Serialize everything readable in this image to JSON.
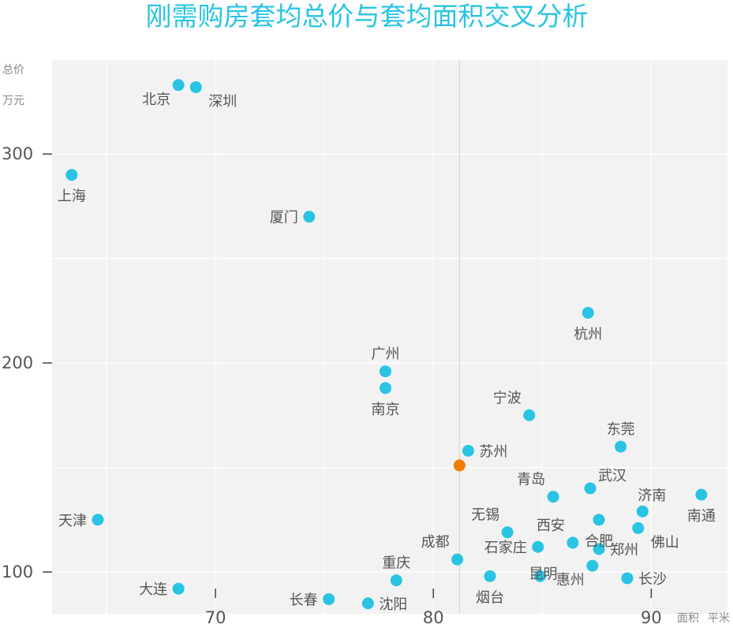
{
  "chart_data": {
    "type": "scatter",
    "title": "刚需购房套均总价与套均面积交叉分析",
    "ylabel_lines": [
      "总价",
      "万元"
    ],
    "xlabel_lines": [
      "面积",
      "平米"
    ],
    "xlim": [
      62.5,
      93.5
    ],
    "ylim": [
      80,
      345
    ],
    "xticks": [
      70,
      80,
      90
    ],
    "yticks": [
      100,
      200,
      300
    ],
    "grid": true,
    "colors": {
      "point": "#29c4e3",
      "highlight": "#f07c00",
      "plot_bg": "#f2f2f2",
      "refline": "#e8c8b8",
      "title": "#29c4e3"
    },
    "reference_x": 81.2,
    "highlight_point": {
      "x": 81.2,
      "y": 151
    },
    "points": [
      {
        "name": "北京",
        "x": 68.3,
        "y": 333
      },
      {
        "name": "深圳",
        "x": 69.1,
        "y": 332
      },
      {
        "name": "上海",
        "x": 63.4,
        "y": 290
      },
      {
        "name": "厦门",
        "x": 74.3,
        "y": 270
      },
      {
        "name": "杭州",
        "x": 87.1,
        "y": 224
      },
      {
        "name": "广州",
        "x": 77.8,
        "y": 196
      },
      {
        "name": "南京",
        "x": 77.8,
        "y": 188
      },
      {
        "name": "宁波",
        "x": 84.4,
        "y": 175
      },
      {
        "name": "东莞",
        "x": 88.6,
        "y": 160
      },
      {
        "name": "苏州",
        "x": 81.6,
        "y": 158
      },
      {
        "name": "青岛",
        "x": 85.5,
        "y": 136
      },
      {
        "name": "武汉",
        "x": 87.2,
        "y": 140
      },
      {
        "name": "济南",
        "x": 89.6,
        "y": 129
      },
      {
        "name": "南通",
        "x": 92.3,
        "y": 137
      },
      {
        "name": "天津",
        "x": 64.6,
        "y": 125
      },
      {
        "name": "无锡",
        "x": 83.4,
        "y": 119
      },
      {
        "name": "西安",
        "x": 86.4,
        "y": 114
      },
      {
        "name": "合肥",
        "x": 87.6,
        "y": 125
      },
      {
        "name": "佛山",
        "x": 89.4,
        "y": 121
      },
      {
        "name": "成都",
        "x": 81.1,
        "y": 106
      },
      {
        "name": "石家庄",
        "x": 84.8,
        "y": 112
      },
      {
        "name": "郑州",
        "x": 87.6,
        "y": 111
      },
      {
        "name": "昆明",
        "x": 84.9,
        "y": 98
      },
      {
        "name": "惠州",
        "x": 87.3,
        "y": 103
      },
      {
        "name": "长沙",
        "x": 88.9,
        "y": 97
      },
      {
        "name": "烟台",
        "x": 82.6,
        "y": 98
      },
      {
        "name": "重庆",
        "x": 78.3,
        "y": 96
      },
      {
        "name": "沈阳",
        "x": 77.0,
        "y": 85
      },
      {
        "name": "长春",
        "x": 75.2,
        "y": 87
      },
      {
        "name": "大连",
        "x": 68.3,
        "y": 92
      }
    ]
  }
}
